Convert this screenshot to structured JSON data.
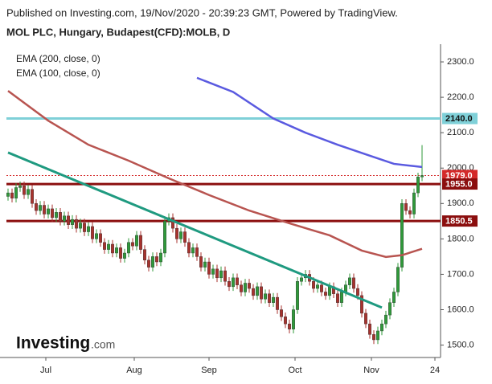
{
  "header": {
    "published": "Published on Investing.com, 19/Nov/2020 - 20:39:23 GMT, Powered by TradingView.",
    "instrument": "MOL PLC, Hungary, Budapest(CFD):MOLB, D"
  },
  "logo": {
    "brand": "Investing",
    "suffix": ".com"
  },
  "chart_data": {
    "type": "candlestick",
    "xlim": [
      -0.4,
      107.6
    ],
    "ylim": [
      1465,
      2350
    ],
    "xticks": [
      {
        "value": 9.4,
        "label": "Jul"
      },
      {
        "value": 31.4,
        "label": "Aug"
      },
      {
        "value": 50,
        "label": "Sep"
      },
      {
        "value": 71.4,
        "label": "Oct"
      },
      {
        "value": 90.4,
        "label": "Nov"
      },
      {
        "value": 106.2,
        "label": "24"
      }
    ],
    "yticks": [
      {
        "value": 1500,
        "label": "1500.0"
      },
      {
        "value": 1600,
        "label": "1600.0"
      },
      {
        "value": 1700,
        "label": "1700.0"
      },
      {
        "value": 1800,
        "label": "1800.0"
      },
      {
        "value": 1900,
        "label": "1900.0"
      },
      {
        "value": 2000,
        "label": "2000.0"
      },
      {
        "value": 2100,
        "label": "2100.0"
      },
      {
        "value": 2200,
        "label": "2200.0"
      },
      {
        "value": 2300,
        "label": "2300.0"
      }
    ],
    "up_color": "#2f9a3a",
    "down_color": "#a8322d",
    "open": [
      1920,
      1930,
      1915,
      1945,
      1950,
      1925,
      1940,
      1900,
      1880,
      1895,
      1870,
      1885,
      1860,
      1875,
      1850,
      1865,
      1840,
      1855,
      1830,
      1845,
      1820,
      1835,
      1800,
      1815,
      1790,
      1770,
      1785,
      1760,
      1775,
      1745,
      1760,
      1790,
      1780,
      1810,
      1770,
      1740,
      1720,
      1750,
      1735,
      1760,
      1850,
      1860,
      1830,
      1800,
      1820,
      1790,
      1760,
      1775,
      1750,
      1720,
      1735,
      1700,
      1715,
      1690,
      1710,
      1680,
      1665,
      1690,
      1670,
      1650,
      1675,
      1660,
      1640,
      1665,
      1630,
      1645,
      1620,
      1635,
      1600,
      1580,
      1560,
      1545,
      1600,
      1680,
      1690,
      1700,
      1680,
      1660,
      1670,
      1650,
      1640,
      1665,
      1645,
      1620,
      1650,
      1670,
      1690,
      1660,
      1640,
      1590,
      1560,
      1530,
      1515,
      1540,
      1560,
      1585,
      1620,
      1650,
      1720,
      1900,
      1880,
      1870,
      1930,
      1975
    ],
    "high": [
      1942,
      1942,
      1957,
      1962,
      1962,
      1952,
      1952,
      1912,
      1907,
      1907,
      1897,
      1897,
      1887,
      1887,
      1877,
      1877,
      1867,
      1867,
      1857,
      1857,
      1847,
      1847,
      1827,
      1827,
      1802,
      1797,
      1797,
      1787,
      1787,
      1772,
      1802,
      1802,
      1822,
      1822,
      1782,
      1752,
      1762,
      1762,
      1772,
      1862,
      1872,
      1872,
      1842,
      1832,
      1832,
      1802,
      1787,
      1787,
      1762,
      1747,
      1747,
      1727,
      1727,
      1722,
      1722,
      1692,
      1702,
      1702,
      1682,
      1687,
      1687,
      1672,
      1677,
      1677,
      1657,
      1657,
      1647,
      1647,
      1612,
      1592,
      1572,
      1612,
      1692,
      1702,
      1712,
      1712,
      1692,
      1682,
      1682,
      1662,
      1677,
      1677,
      1657,
      1662,
      1682,
      1702,
      1702,
      1672,
      1652,
      1602,
      1572,
      1542,
      1552,
      1572,
      1597,
      1632,
      1662,
      1732,
      1912,
      1912,
      1892,
      1942,
      1987,
      2065
    ],
    "low": [
      1908,
      1903,
      1903,
      1933,
      1913,
      1913,
      1888,
      1868,
      1868,
      1858,
      1858,
      1848,
      1848,
      1838,
      1838,
      1828,
      1828,
      1818,
      1818,
      1808,
      1808,
      1788,
      1788,
      1778,
      1758,
      1758,
      1748,
      1748,
      1733,
      1733,
      1748,
      1768,
      1768,
      1758,
      1728,
      1708,
      1708,
      1723,
      1723,
      1748,
      1838,
      1818,
      1788,
      1788,
      1778,
      1748,
      1748,
      1738,
      1708,
      1708,
      1688,
      1688,
      1678,
      1678,
      1668,
      1653,
      1653,
      1658,
      1638,
      1638,
      1648,
      1628,
      1628,
      1618,
      1618,
      1608,
      1608,
      1588,
      1568,
      1548,
      1533,
      1533,
      1588,
      1668,
      1678,
      1668,
      1648,
      1648,
      1638,
      1628,
      1628,
      1633,
      1608,
      1608,
      1638,
      1658,
      1648,
      1628,
      1578,
      1548,
      1518,
      1503,
      1503,
      1528,
      1548,
      1573,
      1608,
      1638,
      1708,
      1868,
      1858,
      1858,
      1918,
      1963
    ],
    "close": [
      1930,
      1915,
      1945,
      1950,
      1925,
      1940,
      1900,
      1880,
      1895,
      1870,
      1885,
      1860,
      1875,
      1850,
      1865,
      1840,
      1855,
      1830,
      1845,
      1820,
      1835,
      1800,
      1815,
      1790,
      1770,
      1785,
      1760,
      1775,
      1745,
      1760,
      1790,
      1780,
      1810,
      1770,
      1740,
      1720,
      1750,
      1735,
      1760,
      1850,
      1860,
      1830,
      1800,
      1820,
      1790,
      1760,
      1775,
      1750,
      1720,
      1735,
      1700,
      1715,
      1690,
      1710,
      1680,
      1665,
      1690,
      1670,
      1650,
      1675,
      1660,
      1640,
      1665,
      1630,
      1645,
      1620,
      1635,
      1600,
      1580,
      1560,
      1545,
      1600,
      1680,
      1690,
      1700,
      1680,
      1660,
      1670,
      1650,
      1640,
      1665,
      1645,
      1620,
      1650,
      1670,
      1690,
      1660,
      1640,
      1590,
      1560,
      1530,
      1515,
      1540,
      1560,
      1585,
      1620,
      1650,
      1720,
      1900,
      1880,
      1870,
      1930,
      1975,
      1979
    ],
    "series": [
      {
        "name": "EMA (200, close, 0)",
        "color": "#5a5ae0",
        "x": [
          47,
          56,
          66,
          74,
          82,
          90,
          96,
          103
        ],
        "values": [
          2255,
          2215,
          2140,
          2100,
          2066,
          2035,
          2012,
          2003
        ]
      },
      {
        "name": "EMA (100, close, 0)",
        "color": "#b85450",
        "x": [
          0,
          10,
          20,
          30,
          40,
          50,
          60,
          70,
          80,
          88,
          94,
          98,
          103
        ],
        "values": [
          2218,
          2134,
          2066,
          2021,
          1971,
          1924,
          1880,
          1844,
          1810,
          1767,
          1749,
          1754,
          1772
        ]
      }
    ],
    "trendline": {
      "color": "#1f9a80",
      "x": [
        0,
        93
      ],
      "values": [
        2044,
        1606
      ]
    },
    "levels": {
      "values": [
        2140,
        1979,
        1955,
        1850.5
      ],
      "value_labels": [
        "2140.0",
        "1979.0",
        "1955.0",
        "1850.5"
      ],
      "colors": [
        "#7fd0d8",
        "#d42a2a",
        "#8b0e0e",
        "#8b0e0e"
      ],
      "styles": [
        "solid",
        "dotted",
        "solid",
        "solid"
      ]
    }
  }
}
